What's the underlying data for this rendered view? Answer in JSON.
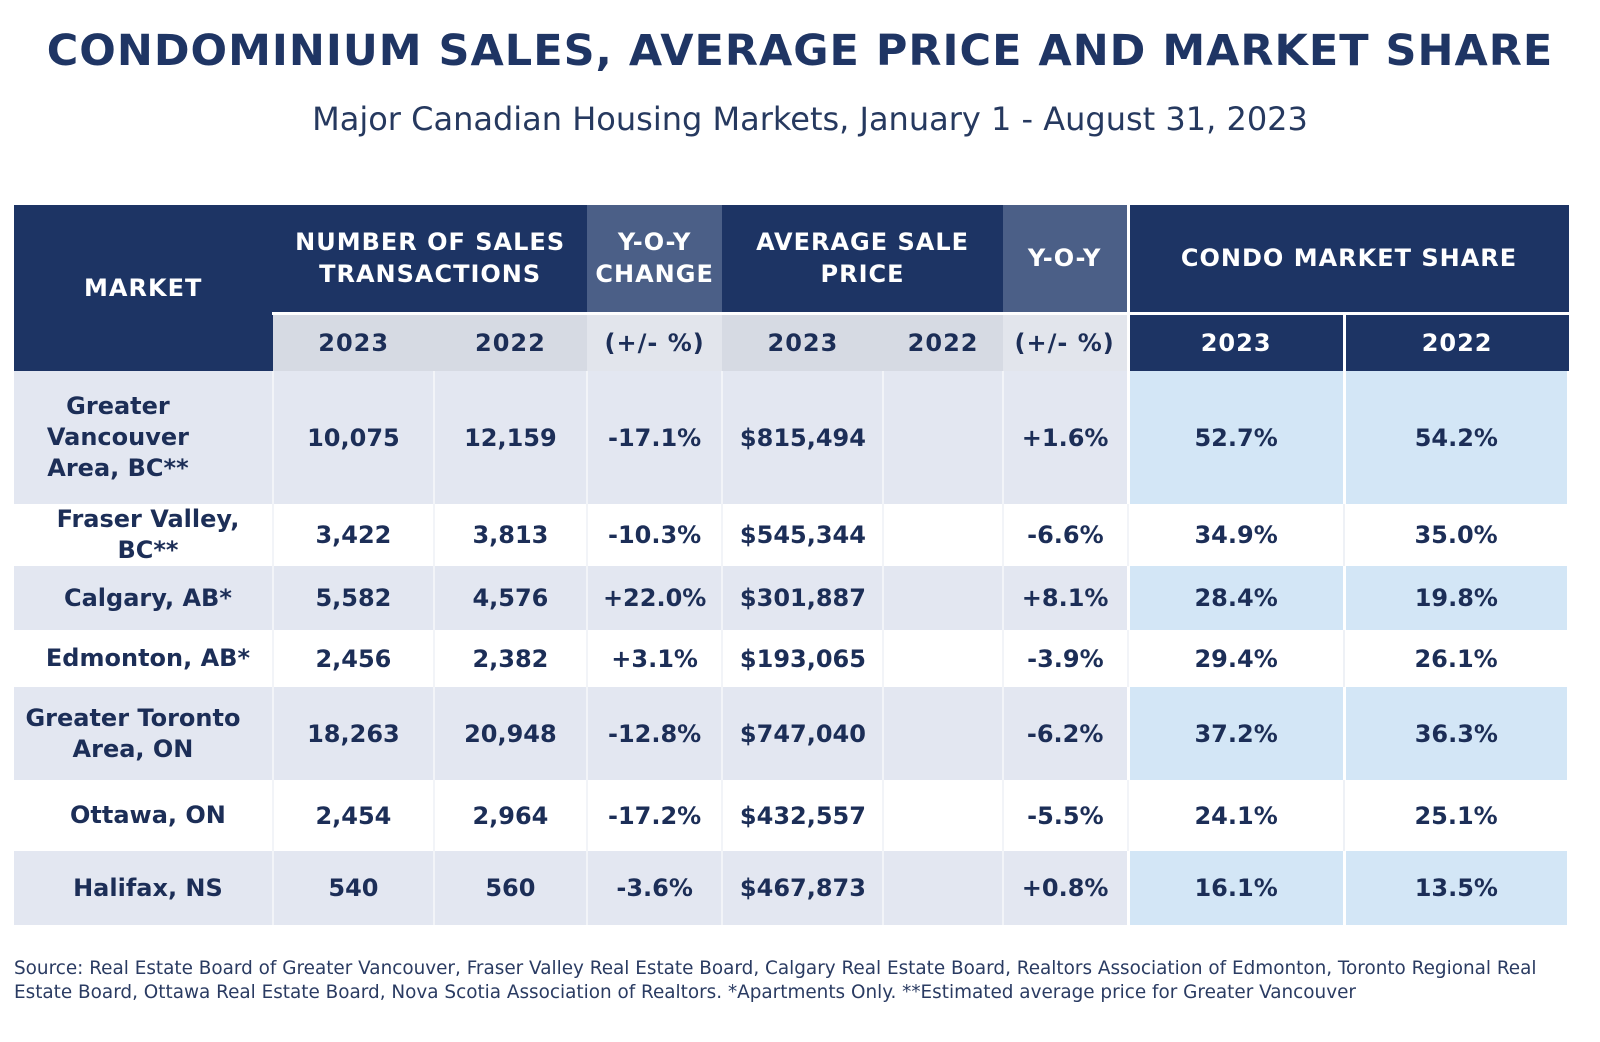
{
  "title": "CONDOMINIUM SALES, AVERAGE PRICE AND MARKET SHARE",
  "subtitle": "Major Canadian Housing Markets, January 1 - August 31, 2023",
  "header": {
    "market": "MARKET",
    "sales_line1": "NUMBER OF SALES",
    "sales_line2": "TRANSACTIONS",
    "yoy_change_line1": "Y-O-Y",
    "yoy_change_line2": "CHANGE",
    "avg_price_line1": "AVERAGE SALE",
    "avg_price_line2": "PRICE",
    "yoy": "Y-O-Y",
    "market_share": "CONDO MARKET SHARE",
    "y2023": "2023",
    "y2022": "2022",
    "pct": "(+/- %)"
  },
  "chart_data": {
    "type": "table",
    "columns": [
      "MARKET",
      "NUMBER OF SALES TRANSACTIONS 2023",
      "NUMBER OF SALES TRANSACTIONS 2022",
      "Y-O-Y CHANGE (+/- %)",
      "AVERAGE SALE PRICE 2023",
      "AVERAGE SALE PRICE 2022",
      "Y-O-Y (+/- %)",
      "CONDO MARKET SHARE 2023",
      "CONDO MARKET SHARE 2022"
    ],
    "rows": [
      {
        "market": "Greater Vancouver Area, BC**",
        "sales_2023": "10,075",
        "sales_2022": "12,159",
        "sales_yoy": "-17.1%",
        "price_2023": "$815,494",
        "price_2022": "",
        "price_yoy": "+1.6%",
        "share_2023": "52.7%",
        "share_2022": "54.2%"
      },
      {
        "market": "Fraser Valley, BC**",
        "sales_2023": "3,422",
        "sales_2022": "3,813",
        "sales_yoy": "-10.3%",
        "price_2023": "$545,344",
        "price_2022": "",
        "price_yoy": "-6.6%",
        "share_2023": "34.9%",
        "share_2022": "35.0%"
      },
      {
        "market": "Calgary, AB*",
        "sales_2023": "5,582",
        "sales_2022": "4,576",
        "sales_yoy": "+22.0%",
        "price_2023": "$301,887",
        "price_2022": "",
        "price_yoy": "+8.1%",
        "share_2023": "28.4%",
        "share_2022": "19.8%"
      },
      {
        "market": "Edmonton, AB*",
        "sales_2023": "2,456",
        "sales_2022": "2,382",
        "sales_yoy": "+3.1%",
        "price_2023": "$193,065",
        "price_2022": "",
        "price_yoy": "-3.9%",
        "share_2023": "29.4%",
        "share_2022": "26.1%"
      },
      {
        "market": "Greater Toronto Area, ON",
        "sales_2023": "18,263",
        "sales_2022": "20,948",
        "sales_yoy": "-12.8%",
        "price_2023": "$747,040",
        "price_2022": "",
        "price_yoy": "-6.2%",
        "share_2023": "37.2%",
        "share_2022": "36.3%"
      },
      {
        "market": "Ottawa, ON",
        "sales_2023": "2,454",
        "sales_2022": "2,964",
        "sales_yoy": "-17.2%",
        "price_2023": "$432,557",
        "price_2022": "",
        "price_yoy": "-5.5%",
        "share_2023": "24.1%",
        "share_2022": "25.1%"
      },
      {
        "market": "Halifax, NS",
        "sales_2023": "540",
        "sales_2022": "560",
        "sales_yoy": "-3.6%",
        "price_2023": "$467,873",
        "price_2022": "",
        "price_yoy": "+0.8%",
        "share_2023": "16.1%",
        "share_2022": "13.5%"
      }
    ]
  },
  "source": "Source: Real Estate Board of Greater Vancouver, Fraser Valley Real Estate Board, Calgary Real Estate Board, Realtors Association of Edmonton, Toronto Regional Real Estate Board, Ottawa Real Estate Board, Nova Scotia Association of Realtors. *Apartments Only. **Estimated average price for Greater Vancouver",
  "colors": {
    "header_dark": "#1d3464",
    "header_mid": "#4b5f87",
    "row_shaded": "#e3e7f1",
    "share_shaded": "#d3e6f6"
  }
}
